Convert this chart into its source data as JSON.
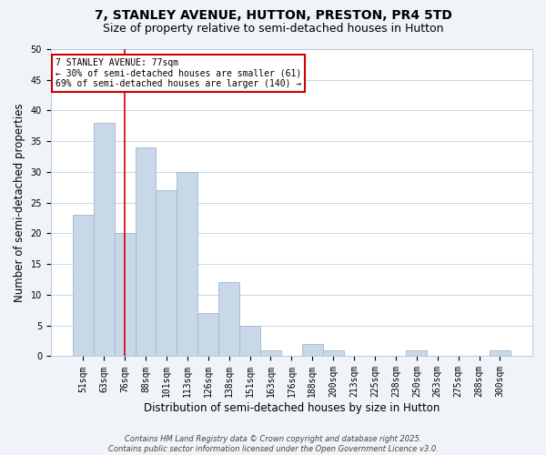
{
  "title": "7, STANLEY AVENUE, HUTTON, PRESTON, PR4 5TD",
  "subtitle": "Size of property relative to semi-detached houses in Hutton",
  "xlabel": "Distribution of semi-detached houses by size in Hutton",
  "ylabel": "Number of semi-detached properties",
  "bar_labels": [
    "51sqm",
    "63sqm",
    "76sqm",
    "88sqm",
    "101sqm",
    "113sqm",
    "126sqm",
    "138sqm",
    "151sqm",
    "163sqm",
    "176sqm",
    "188sqm",
    "200sqm",
    "213sqm",
    "225sqm",
    "238sqm",
    "250sqm",
    "263sqm",
    "275sqm",
    "288sqm",
    "300sqm"
  ],
  "bar_values": [
    23,
    38,
    20,
    34,
    27,
    30,
    7,
    12,
    5,
    1,
    0,
    2,
    1,
    0,
    0,
    0,
    1,
    0,
    0,
    0,
    1
  ],
  "bar_color": "#c8d8e8",
  "bar_edge_color": "#a0b8cc",
  "ylim": [
    0,
    50
  ],
  "yticks": [
    0,
    5,
    10,
    15,
    20,
    25,
    30,
    35,
    40,
    45,
    50
  ],
  "vline_x_index": 2,
  "vline_color": "#cc0000",
  "annotation_line1": "7 STANLEY AVENUE: 77sqm",
  "annotation_line2": "← 30% of semi-detached houses are smaller (61)",
  "annotation_line3": "69% of semi-detached houses are larger (140) →",
  "footer_text": "Contains HM Land Registry data © Crown copyright and database right 2025.\nContains public sector information licensed under the Open Government Licence v3.0.",
  "background_color": "#f0f4f8",
  "plot_background_color": "#ffffff",
  "grid_color": "#c8d8e8",
  "title_fontsize": 10,
  "subtitle_fontsize": 9,
  "label_fontsize": 8.5,
  "tick_fontsize": 7,
  "annot_fontsize": 7,
  "footer_fontsize": 6
}
